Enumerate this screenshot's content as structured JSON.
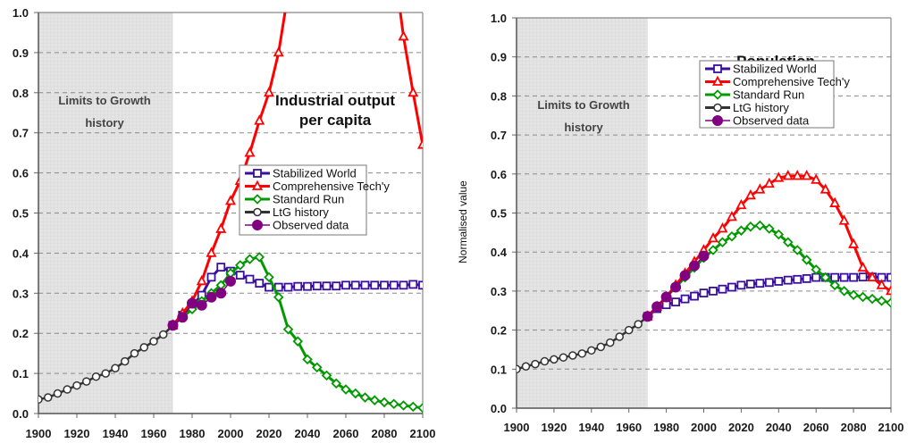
{
  "chart_data": [
    {
      "type": "line",
      "title": "Industrial output per capita",
      "title_lines": [
        "Industrial output",
        "per capita"
      ],
      "xlabel": "",
      "ylabel": "",
      "xlim": [
        1900,
        2100
      ],
      "ylim": [
        0,
        1.0
      ],
      "x_ticks": [
        "1900",
        "1920",
        "1940",
        "1960",
        "1980",
        "2000",
        "2020",
        "2040",
        "2060",
        "2080",
        "2100"
      ],
      "y_ticks": [
        "0.0",
        "0.1",
        "0.2",
        "0.3",
        "0.4",
        "0.5",
        "0.6",
        "0.7",
        "0.8",
        "0.9",
        "1.0"
      ],
      "grid": "horizontal dashed",
      "shaded_region": {
        "from": 1900,
        "to": 1970,
        "label_lines": [
          "Limits to Growth",
          "history"
        ]
      },
      "legend_position": "center-right",
      "series": [
        {
          "name": "Stabilized World",
          "color": "#3a0f9e",
          "marker": "square",
          "x": [
            1970,
            1975,
            1980,
            1985,
            1990,
            1995,
            2000,
            2005,
            2010,
            2015,
            2020,
            2025,
            2030,
            2035,
            2040,
            2045,
            2050,
            2055,
            2060,
            2065,
            2070,
            2075,
            2080,
            2085,
            2090,
            2095,
            2100
          ],
          "values": [
            0.22,
            0.245,
            0.27,
            0.295,
            0.34,
            0.365,
            0.355,
            0.345,
            0.335,
            0.325,
            0.315,
            0.315,
            0.315,
            0.317,
            0.317,
            0.318,
            0.318,
            0.318,
            0.32,
            0.32,
            0.32,
            0.32,
            0.32,
            0.32,
            0.32,
            0.322,
            0.32
          ]
        },
        {
          "name": "Comprehensive Tech'y",
          "color": "#ff0000",
          "marker": "triangle",
          "x": [
            1970,
            1975,
            1980,
            1985,
            1990,
            1995,
            2000,
            2005,
            2010,
            2015,
            2020,
            2025,
            2030,
            2087,
            2090,
            2095,
            2100
          ],
          "values": [
            0.22,
            0.25,
            0.28,
            0.33,
            0.4,
            0.46,
            0.53,
            0.58,
            0.65,
            0.73,
            0.8,
            0.9,
            1.05,
            1.05,
            0.94,
            0.8,
            0.67
          ],
          "marker_mask": [
            1,
            1,
            1,
            1,
            1,
            1,
            1,
            1,
            1,
            1,
            1,
            1,
            0,
            0,
            1,
            1,
            1
          ]
        },
        {
          "name": "Standard Run",
          "color": "#009900",
          "marker": "diamond",
          "x": [
            1970,
            1975,
            1980,
            1985,
            1990,
            1995,
            2000,
            2005,
            2010,
            2015,
            2020,
            2025,
            2030,
            2035,
            2040,
            2045,
            2050,
            2055,
            2060,
            2065,
            2070,
            2075,
            2080,
            2085,
            2090,
            2095,
            2100
          ],
          "values": [
            0.22,
            0.24,
            0.26,
            0.28,
            0.3,
            0.32,
            0.35,
            0.37,
            0.385,
            0.39,
            0.34,
            0.29,
            0.21,
            0.18,
            0.135,
            0.115,
            0.095,
            0.075,
            0.06,
            0.05,
            0.04,
            0.033,
            0.028,
            0.024,
            0.02,
            0.017,
            0.014
          ]
        },
        {
          "name": "LtG history",
          "color": "#333333",
          "marker": "circle",
          "x": [
            1900,
            1905,
            1910,
            1915,
            1920,
            1925,
            1930,
            1935,
            1940,
            1945,
            1950,
            1955,
            1960,
            1965,
            1970
          ],
          "values": [
            0.035,
            0.04,
            0.05,
            0.06,
            0.07,
            0.08,
            0.092,
            0.1,
            0.113,
            0.13,
            0.15,
            0.165,
            0.18,
            0.197,
            0.22
          ]
        },
        {
          "name": "Observed data",
          "color": "#800080",
          "marker": "filled-circle",
          "x": [
            1970,
            1975,
            1980,
            1985,
            1990,
            1995,
            2000
          ],
          "values": [
            0.22,
            0.24,
            0.275,
            0.27,
            0.29,
            0.3,
            0.33
          ]
        }
      ]
    },
    {
      "type": "line",
      "title": "Population",
      "title_lines": [
        "Population"
      ],
      "xlabel": "",
      "ylabel": "Normalised value",
      "xlim": [
        1900,
        2100
      ],
      "ylim": [
        0,
        1.0
      ],
      "x_ticks": [
        "1900",
        "1920",
        "1940",
        "1960",
        "1980",
        "2000",
        "2020",
        "2040",
        "2060",
        "2080",
        "2100"
      ],
      "y_ticks": [
        "0.0",
        "0.1",
        "0.2",
        "0.3",
        "0.4",
        "0.5",
        "0.6",
        "0.7",
        "0.8",
        "0.9",
        "1.0"
      ],
      "grid": "horizontal dashed",
      "shaded_region": {
        "from": 1900,
        "to": 1970,
        "label_lines": [
          "Limits to Growth",
          "history"
        ]
      },
      "legend_position": "top-right",
      "series": [
        {
          "name": "Stabilized World",
          "color": "#3a0f9e",
          "marker": "square",
          "x": [
            1970,
            1975,
            1980,
            1985,
            1990,
            1995,
            2000,
            2005,
            2010,
            2015,
            2020,
            2025,
            2030,
            2035,
            2040,
            2045,
            2050,
            2055,
            2060,
            2065,
            2070,
            2075,
            2080,
            2085,
            2090,
            2095,
            2100
          ],
          "values": [
            0.235,
            0.255,
            0.265,
            0.272,
            0.28,
            0.287,
            0.295,
            0.3,
            0.305,
            0.31,
            0.315,
            0.318,
            0.32,
            0.322,
            0.325,
            0.328,
            0.33,
            0.332,
            0.335,
            0.335,
            0.335,
            0.335,
            0.335,
            0.336,
            0.336,
            0.335,
            0.335
          ]
        },
        {
          "name": "Comprehensive Tech'y",
          "color": "#ff0000",
          "marker": "triangle",
          "x": [
            1970,
            1975,
            1980,
            1985,
            1990,
            1995,
            2000,
            2005,
            2010,
            2015,
            2020,
            2025,
            2030,
            2035,
            2040,
            2045,
            2050,
            2055,
            2060,
            2065,
            2070,
            2075,
            2080,
            2085,
            2090,
            2095,
            2100
          ],
          "values": [
            0.235,
            0.26,
            0.285,
            0.315,
            0.345,
            0.375,
            0.405,
            0.435,
            0.46,
            0.49,
            0.52,
            0.545,
            0.56,
            0.575,
            0.59,
            0.595,
            0.595,
            0.595,
            0.585,
            0.56,
            0.525,
            0.48,
            0.42,
            0.36,
            0.335,
            0.315,
            0.3
          ]
        },
        {
          "name": "Standard Run",
          "color": "#009900",
          "marker": "diamond",
          "x": [
            1970,
            1975,
            1980,
            1985,
            1990,
            1995,
            2000,
            2005,
            2010,
            2015,
            2020,
            2025,
            2030,
            2035,
            2040,
            2045,
            2050,
            2055,
            2060,
            2065,
            2070,
            2075,
            2080,
            2085,
            2090,
            2095,
            2100
          ],
          "values": [
            0.235,
            0.26,
            0.285,
            0.31,
            0.335,
            0.36,
            0.385,
            0.405,
            0.425,
            0.44,
            0.455,
            0.465,
            0.468,
            0.46,
            0.445,
            0.425,
            0.405,
            0.38,
            0.355,
            0.335,
            0.315,
            0.3,
            0.29,
            0.285,
            0.28,
            0.275,
            0.27
          ]
        },
        {
          "name": "LtG history",
          "color": "#333333",
          "marker": "circle",
          "x": [
            1900,
            1905,
            1910,
            1915,
            1920,
            1925,
            1930,
            1935,
            1940,
            1945,
            1950,
            1955,
            1960,
            1965,
            1970
          ],
          "values": [
            0.1,
            0.107,
            0.113,
            0.12,
            0.125,
            0.13,
            0.135,
            0.14,
            0.148,
            0.157,
            0.168,
            0.183,
            0.2,
            0.215,
            0.235
          ]
        },
        {
          "name": "Observed data",
          "color": "#800080",
          "marker": "filled-circle",
          "x": [
            1970,
            1975,
            1980,
            1985,
            1990,
            1995,
            2000
          ],
          "values": [
            0.235,
            0.26,
            0.285,
            0.31,
            0.34,
            0.365,
            0.39
          ]
        }
      ]
    }
  ]
}
